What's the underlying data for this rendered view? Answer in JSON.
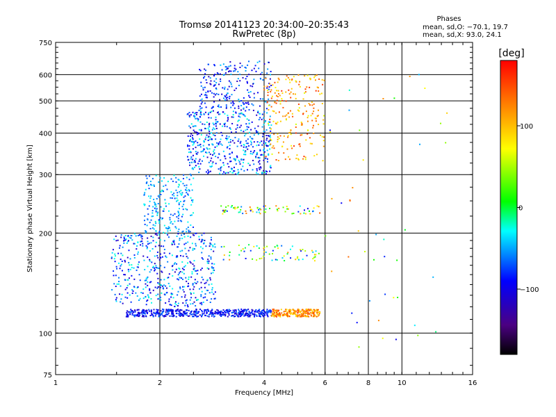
{
  "chart_data": {
    "type": "scatter",
    "title": "Tromsø 20141123 20:34:00–20:35:43",
    "subtitle": "RwPretec (8p)",
    "xlabel": "Frequency [MHz]",
    "ylabel": "Stationary phase Virtual Height [km]",
    "xscale": "log",
    "yscale": "log",
    "xlim": [
      1,
      16
    ],
    "ylim": [
      75,
      750
    ],
    "x_ticks": [
      1,
      2,
      4,
      6,
      8,
      10,
      16
    ],
    "x_tick_labels": [
      "1",
      "2",
      "4",
      "6",
      "8",
      "10",
      "16"
    ],
    "y_ticks": [
      75,
      100,
      200,
      300,
      400,
      500,
      600,
      750
    ],
    "y_tick_labels": [
      "75",
      "100",
      "200",
      "300",
      "400",
      "500",
      "600",
      "750"
    ],
    "grid": true,
    "legend_panel": {
      "title": "Phases",
      "line1": "mean, sd,O: −70.1, 19.7",
      "line2": "mean, sd,X:  93.0, 24.1"
    },
    "colorbar": {
      "label": "[deg]",
      "range": [
        -180,
        180
      ],
      "ticks": [
        100,
        0,
        -100
      ],
      "tick_labels": [
        "100",
        "0",
        "−100"
      ],
      "colormap": "rainbow"
    },
    "point_color_encodes": "phase [deg]",
    "point_clusters": [
      {
        "region": "E-layer trace",
        "x_range": [
          1.6,
          4.2
        ],
        "y_range": [
          112,
          118
        ],
        "phase_range": [
          -120,
          -60
        ],
        "density": "high"
      },
      {
        "region": "E-layer trace (X)",
        "x_range": [
          4.2,
          5.8
        ],
        "y_range": [
          112,
          118
        ],
        "phase_range": [
          80,
          160
        ],
        "density": "medium"
      },
      {
        "region": "Es/low F cloud",
        "x_range": [
          1.45,
          2.9
        ],
        "y_range": [
          120,
          200
        ],
        "phase_range": [
          -120,
          -20
        ],
        "density": "high"
      },
      {
        "region": "F1 cloud",
        "x_range": [
          1.8,
          2.5
        ],
        "y_range": [
          200,
          300
        ],
        "phase_range": [
          -80,
          -20
        ],
        "density": "medium"
      },
      {
        "region": "Mid echoes 170 km",
        "x_range": [
          3.0,
          5.8
        ],
        "y_range": [
          165,
          185
        ],
        "phase_range": [
          -100,
          120
        ],
        "density": "low"
      },
      {
        "region": "Mid echoes 235 km",
        "x_range": [
          3.0,
          5.8
        ],
        "y_range": [
          228,
          242
        ],
        "phase_range": [
          -100,
          140
        ],
        "density": "low"
      },
      {
        "region": "F2 cloud",
        "x_range": [
          2.4,
          4.2
        ],
        "y_range": [
          300,
          470
        ],
        "phase_range": [
          -120,
          -20
        ],
        "density": "high"
      },
      {
        "region": "F2 upper scatter",
        "x_range": [
          2.6,
          4.2
        ],
        "y_range": [
          470,
          660
        ],
        "phase_range": [
          -120,
          -40
        ],
        "density": "medium"
      },
      {
        "region": "F2 X-mode cloud",
        "x_range": [
          4.0,
          6.0
        ],
        "y_range": [
          330,
          600
        ],
        "phase_range": [
          60,
          160
        ],
        "density": "medium"
      },
      {
        "region": "Sparse high-frequency echoes",
        "x_range": [
          6.0,
          13.5
        ],
        "y_range": [
          90,
          660
        ],
        "phase_range": [
          -100,
          140
        ],
        "density": "sparse"
      }
    ]
  }
}
